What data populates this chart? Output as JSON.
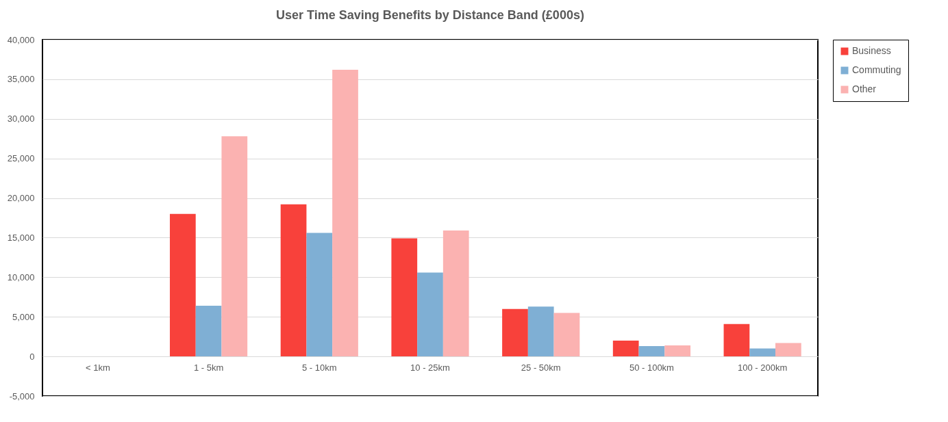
{
  "chart_data": {
    "type": "bar",
    "title": "User Time Saving Benefits by Distance Band (£000s)",
    "categories": [
      "< 1km",
      "1 - 5km",
      "5 - 10km",
      "10 - 25km",
      "25 - 50km",
      "50 - 100km",
      "100 - 200km"
    ],
    "series": [
      {
        "name": "Business",
        "color": "#f8413b",
        "values": [
          0,
          18000,
          19200,
          14900,
          6000,
          2000,
          4100
        ]
      },
      {
        "name": "Commuting",
        "color": "#7fafd4",
        "values": [
          0,
          6400,
          15600,
          10600,
          6300,
          1300,
          1000
        ]
      },
      {
        "name": "Other",
        "color": "#fbb2b1",
        "values": [
          0,
          27800,
          36200,
          15900,
          5500,
          1400,
          1700
        ]
      }
    ],
    "ylim": [
      -5000,
      40000
    ],
    "yticks": [
      {
        "value": -5000,
        "label": "-5,000"
      },
      0,
      {
        "value": 5000,
        "label": "5,000"
      },
      {
        "value": 10000,
        "label": "10,000"
      },
      {
        "value": 15000,
        "label": "15,000"
      },
      {
        "value": 20000,
        "label": "20,000"
      },
      {
        "value": 25000,
        "label": "25,000"
      },
      {
        "value": 30000,
        "label": "30,000"
      },
      {
        "value": 35000,
        "label": "35,000"
      },
      {
        "value": 40000,
        "label": "40,000"
      }
    ],
    "grid": "y",
    "legend": "right"
  }
}
